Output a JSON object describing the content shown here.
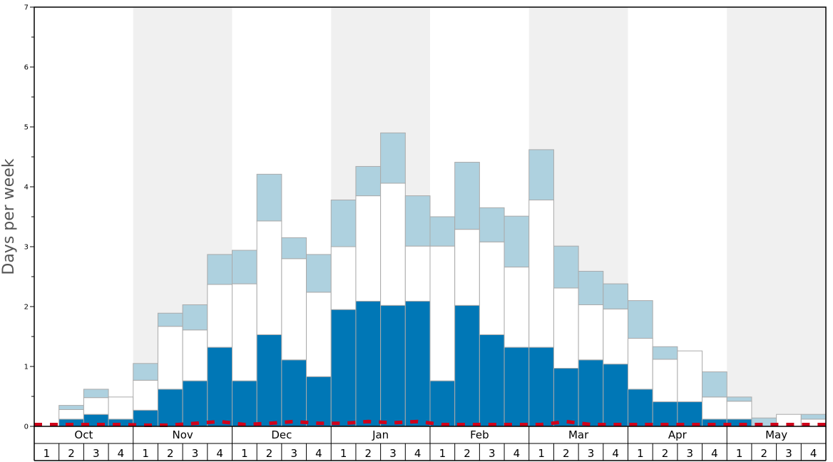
{
  "chart_data": {
    "type": "bar",
    "stacked": true,
    "ylabel": "Days per week",
    "ylim": [
      0,
      7
    ],
    "yticks": [
      0,
      1,
      2,
      3,
      4,
      5,
      6,
      7
    ],
    "months": [
      "Oct",
      "Nov",
      "Dec",
      "Jan",
      "Feb",
      "Mar",
      "Apr",
      "May"
    ],
    "weeks": [
      "1",
      "2",
      "3",
      "4"
    ],
    "shaded_months": [
      "Nov",
      "Jan",
      "Mar",
      "May"
    ],
    "colors": {
      "dark": "#0077b6",
      "mid": "#ffffff",
      "light": "#aed1df",
      "bar_border": "#aaaaaa",
      "shade": "#f0f0f0",
      "line": "#d0021b"
    },
    "series": [
      {
        "role": "dark",
        "values": [
          0.0,
          0.12,
          0.2,
          0.12,
          0.27,
          0.62,
          0.76,
          1.32,
          0.76,
          1.53,
          1.11,
          0.83,
          1.95,
          2.09,
          2.02,
          2.09,
          0.76,
          2.02,
          1.53,
          1.32,
          1.32,
          0.97,
          1.11,
          1.04,
          0.62,
          0.41,
          0.41,
          0.12,
          0.12,
          0.0,
          0.0,
          0.0
        ]
      },
      {
        "role": "mid",
        "values": [
          0.0,
          0.16,
          0.28,
          0.37,
          0.5,
          1.05,
          0.85,
          1.05,
          1.62,
          1.9,
          1.69,
          1.41,
          1.05,
          1.76,
          2.04,
          0.92,
          2.25,
          1.27,
          1.55,
          1.34,
          2.46,
          1.34,
          0.92,
          0.92,
          0.85,
          0.71,
          0.85,
          0.37,
          0.3,
          0.0,
          0.2,
          0.12
        ]
      },
      {
        "role": "light",
        "values": [
          0.0,
          0.07,
          0.14,
          0.0,
          0.28,
          0.22,
          0.42,
          0.5,
          0.56,
          0.78,
          0.35,
          0.63,
          0.78,
          0.49,
          0.84,
          0.84,
          0.49,
          1.12,
          0.57,
          0.85,
          0.84,
          0.7,
          0.56,
          0.42,
          0.63,
          0.21,
          0.0,
          0.42,
          0.07,
          0.14,
          0.0,
          0.08
        ]
      }
    ],
    "line_values": [
      0.03,
      0.03,
      0.03,
      0.03,
      0.02,
      0.02,
      0.05,
      0.08,
      0.03,
      0.05,
      0.08,
      0.05,
      0.05,
      0.08,
      0.06,
      0.08,
      0.03,
      0.03,
      0.03,
      0.03,
      0.03,
      0.08,
      0.03,
      0.03,
      0.03,
      0.03,
      0.03,
      0.03,
      0.03,
      0.03,
      0.03,
      0.03
    ]
  }
}
